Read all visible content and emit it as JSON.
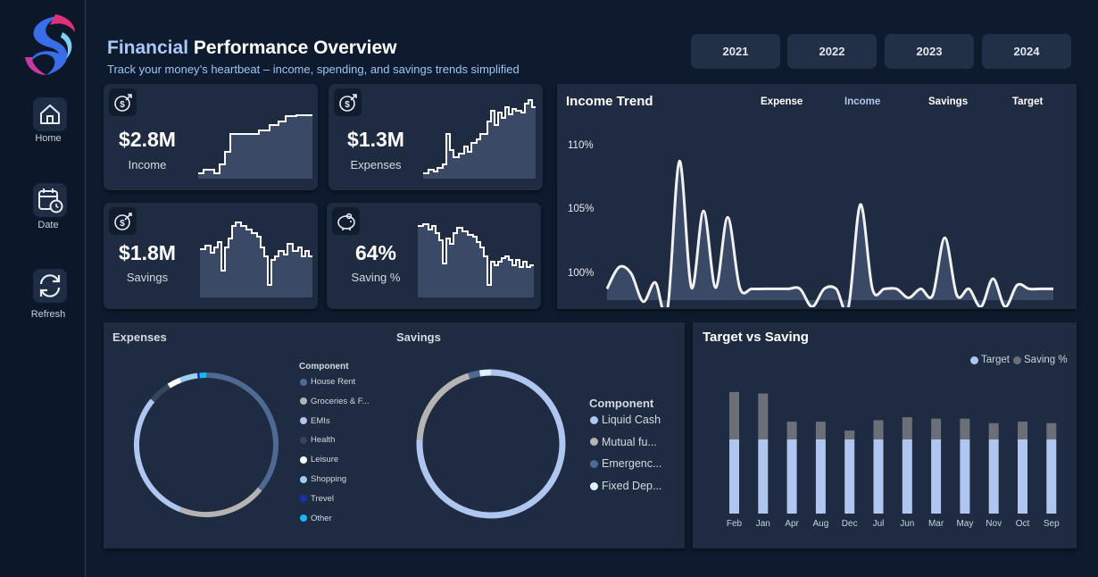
{
  "header": {
    "title_accent": "Financial",
    "title_rest": "Performance Overview",
    "subtitle": "Track your money’s heartbeat – income, spending, and savings trends simplified"
  },
  "sidebar": {
    "items": [
      {
        "label": "Home",
        "icon": "home-icon"
      },
      {
        "label": "Date",
        "icon": "calendar-clock-icon"
      },
      {
        "label": "Refresh",
        "icon": "refresh-icon"
      }
    ]
  },
  "years": [
    "2021",
    "2022",
    "2023",
    "2024"
  ],
  "kpis": {
    "income": {
      "value": "$2.8M",
      "label": "Income",
      "icon": "dollar-arrow-icon"
    },
    "expenses": {
      "value": "$1.3M",
      "label": "Expenses",
      "icon": "dollar-arrow-icon"
    },
    "savings": {
      "value": "$1.8M",
      "label": "Savings",
      "icon": "dollar-target-icon"
    },
    "saving_pct": {
      "value": "64%",
      "label": "Saving %",
      "icon": "piggy-bank-icon"
    }
  },
  "income_trend": {
    "title": "Income Trend",
    "legend": [
      "Expense",
      "Income",
      "Savings",
      "Target"
    ],
    "y_ticks": [
      "110%",
      "105%",
      "100%"
    ]
  },
  "expenses_panel": {
    "title": "Expenses",
    "legend_title": "Component",
    "legend": [
      {
        "label": "House Rent",
        "color": "#4e6a94"
      },
      {
        "label": "Groceries & F...",
        "color": "#b4b4b4"
      },
      {
        "label": "EMIs",
        "color": "#aec6f0"
      },
      {
        "label": "Health",
        "color": "#36455c"
      },
      {
        "label": "Leisure",
        "color": "#ffffff"
      },
      {
        "label": "Shopping",
        "color": "#9ecdf5"
      },
      {
        "label": "Trevel",
        "color": "#1c2fb0"
      },
      {
        "label": "Other",
        "color": "#19b8f0"
      }
    ]
  },
  "savings_panel": {
    "title": "Savings",
    "legend_title": "Component",
    "legend": [
      {
        "label": "Liquid Cash",
        "color": "#aec6f0"
      },
      {
        "label": "Mutual fu...",
        "color": "#b4b4b4"
      },
      {
        "label": "Emergenc...",
        "color": "#4e6a94"
      },
      {
        "label": "Fixed Dep...",
        "color": "#dff0ff"
      }
    ]
  },
  "target_panel": {
    "title": "Target vs Saving",
    "legend": [
      {
        "label": "Target",
        "color": "#aec6f0"
      },
      {
        "label": "Saving %",
        "color": "#6b6f77"
      }
    ]
  },
  "chart_data": [
    {
      "type": "bar",
      "title": "Target vs Saving",
      "categories": [
        "Feb",
        "Jan",
        "Apr",
        "Aug",
        "Dec",
        "Jul",
        "Jun",
        "Mar",
        "May",
        "Nov",
        "Oct",
        "Sep"
      ],
      "series": [
        {
          "name": "Target",
          "values": [
            0.5,
            0.5,
            0.5,
            0.5,
            0.5,
            0.5,
            0.5,
            0.5,
            0.5,
            0.5,
            0.5,
            0.5
          ]
        },
        {
          "name": "Saving %",
          "values": [
            0.82,
            0.81,
            0.62,
            0.62,
            0.56,
            0.63,
            0.65,
            0.64,
            0.64,
            0.61,
            0.62,
            0.61
          ]
        }
      ],
      "stacked": true,
      "legend": "top-right"
    },
    {
      "type": "pie",
      "title": "Expenses",
      "donut": true,
      "categories": [
        "House Rent",
        "Groceries & F...",
        "EMIs",
        "Health",
        "Leisure",
        "Shopping",
        "Trevel",
        "Other"
      ],
      "values": [
        0.36,
        0.2,
        0.3,
        0.05,
        0.03,
        0.04,
        0.005,
        0.015
      ]
    },
    {
      "type": "pie",
      "title": "Savings",
      "donut": true,
      "categories": [
        "Liquid Cash",
        "Mutual fu...",
        "Emergenc...",
        "Fixed Dep..."
      ],
      "values": [
        0.76,
        0.19,
        0.025,
        0.025
      ]
    },
    {
      "type": "area",
      "title": "Income Trend",
      "ylim": [
        98,
        112
      ],
      "x": [
        1,
        2,
        3,
        4,
        5,
        6,
        7,
        8,
        9,
        10,
        11,
        12,
        13,
        14,
        15,
        16,
        17,
        18,
        19,
        20,
        21,
        22,
        23,
        24,
        25,
        26,
        27,
        28,
        29,
        30,
        31,
        32,
        33,
        34,
        35,
        36,
        37,
        38
      ],
      "values": [
        100,
        101.7,
        101.2,
        99,
        100.5,
        98.3,
        110,
        100.1,
        106.1,
        100.1,
        105.6,
        100.1,
        100,
        100,
        100,
        100,
        100,
        98.6,
        100,
        100,
        98.5,
        106.6,
        100,
        100,
        100,
        99.3,
        100,
        99.5,
        104,
        99.5,
        100,
        98.6,
        100.8,
        98.6,
        100.3,
        100,
        100,
        100
      ]
    }
  ]
}
